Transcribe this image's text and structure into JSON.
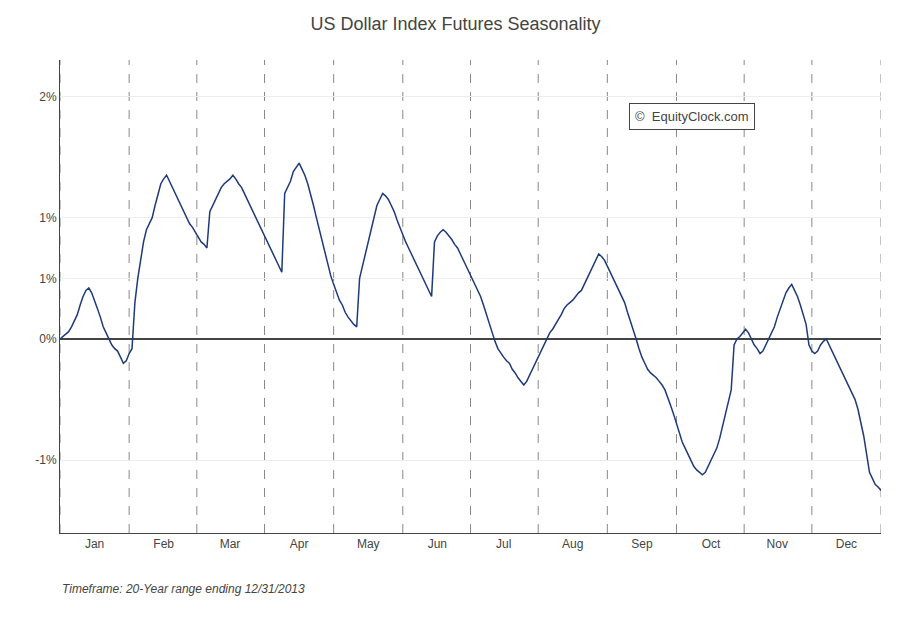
{
  "chart_data": {
    "type": "line",
    "title": "US Dollar Index Futures Seasonality",
    "subtitle": "Timeframe: 20-Year range ending 12/31/2013",
    "annotations": [
      "©  EquityClock.com"
    ],
    "color": "#1F3A7A",
    "ylim": [
      -1.6,
      2.3
    ],
    "yticks": [
      {
        "value": -1.0,
        "label": "-1%"
      },
      {
        "value": 0.0,
        "label": "0%"
      },
      {
        "value": 0.5,
        "label": "1%"
      },
      {
        "value": 1.0,
        "label": "1%"
      },
      {
        "value": 2.0,
        "label": "2%"
      }
    ],
    "grid": true,
    "categories": [
      null,
      null,
      null,
      null,
      null,
      null,
      null,
      null,
      null,
      null,
      null,
      null,
      "Jan",
      null,
      null,
      null,
      null,
      null,
      null,
      null,
      null,
      null,
      null,
      null,
      null,
      null,
      null,
      null,
      null,
      null,
      null,
      null,
      null,
      null,
      null,
      null,
      "Feb",
      null,
      null,
      null,
      null,
      null,
      null,
      null,
      null,
      null,
      null,
      null,
      null,
      null,
      null,
      null,
      null,
      null,
      null,
      null,
      null,
      null,
      null,
      "Mar",
      null,
      null,
      null,
      null,
      null,
      null,
      null,
      null,
      null,
      null,
      null,
      null,
      null,
      null,
      null,
      null,
      null,
      null,
      null,
      null,
      null,
      null,
      null,
      "Apr",
      null,
      null,
      null,
      null,
      null,
      null,
      null,
      null,
      null,
      null,
      null,
      null,
      null,
      null,
      null,
      null,
      null,
      null,
      null,
      null,
      null,
      null,
      null,
      "May",
      null,
      null,
      null,
      null,
      null,
      null,
      null,
      null,
      null,
      null,
      null,
      null,
      null,
      null,
      null,
      null,
      null,
      null,
      null,
      null,
      null,
      null,
      null,
      "Jun",
      null,
      null,
      null,
      null,
      null,
      null,
      null,
      null,
      null,
      null,
      null,
      null,
      null,
      null,
      null,
      null,
      null,
      null,
      null,
      null,
      null,
      null,
      "Jul",
      null,
      null,
      null,
      null,
      null,
      null,
      null,
      null,
      null,
      null,
      null,
      null,
      null,
      null,
      null,
      null,
      null,
      null,
      null,
      null,
      null,
      null,
      null,
      "Aug",
      null,
      null,
      null,
      null,
      null,
      null,
      null,
      null,
      null,
      null,
      null,
      null,
      null,
      null,
      null,
      null,
      null,
      null,
      null,
      null,
      null,
      null,
      null,
      "Sep",
      null,
      null,
      null,
      null,
      null,
      null,
      null,
      null,
      null,
      null,
      null,
      null,
      null,
      null,
      null,
      null,
      null,
      null,
      null,
      null,
      null,
      null,
      null,
      "Oct",
      null,
      null,
      null,
      null,
      null,
      null,
      null,
      null,
      null,
      null,
      null,
      null,
      null,
      null,
      null,
      null,
      null,
      null,
      null,
      null,
      null,
      null,
      "Nov",
      null,
      null,
      null,
      null,
      null,
      null,
      null,
      null,
      null,
      null,
      null,
      null,
      null,
      null,
      null,
      null,
      null,
      null,
      null,
      null,
      null,
      null,
      null,
      "Dec",
      null,
      null,
      null,
      null,
      null,
      null,
      null,
      null,
      null,
      null,
      null,
      null
    ],
    "values": [
      0.0,
      0.02,
      0.04,
      0.06,
      0.1,
      0.15,
      0.2,
      0.28,
      0.35,
      0.4,
      0.42,
      0.38,
      0.32,
      0.25,
      0.18,
      0.1,
      0.05,
      0.0,
      -0.05,
      -0.08,
      -0.1,
      -0.15,
      -0.2,
      -0.18,
      -0.12,
      -0.08,
      0.3,
      0.5,
      0.65,
      0.8,
      0.9,
      0.95,
      1.0,
      1.1,
      1.2,
      1.28,
      1.32,
      1.35,
      1.3,
      1.25,
      1.2,
      1.15,
      1.1,
      1.05,
      1.0,
      0.95,
      0.92,
      0.88,
      0.85,
      0.8,
      0.78,
      0.75,
      1.05,
      1.1,
      1.15,
      1.2,
      1.25,
      1.28,
      1.3,
      1.32,
      1.35,
      1.32,
      1.28,
      1.25,
      1.2,
      1.15,
      1.1,
      1.05,
      1.0,
      0.95,
      0.9,
      0.85,
      0.8,
      0.75,
      0.7,
      0.65,
      0.6,
      0.55,
      1.2,
      1.25,
      1.3,
      1.38,
      1.42,
      1.45,
      1.4,
      1.35,
      1.28,
      1.2,
      1.1,
      1.0,
      0.9,
      0.8,
      0.7,
      0.6,
      0.52,
      0.45,
      0.38,
      0.32,
      0.28,
      0.22,
      0.18,
      0.15,
      0.12,
      0.1,
      0.5,
      0.6,
      0.7,
      0.8,
      0.9,
      1.0,
      1.1,
      1.15,
      1.2,
      1.18,
      1.15,
      1.1,
      1.05,
      0.98,
      0.92,
      0.85,
      0.8,
      0.75,
      0.7,
      0.65,
      0.6,
      0.55,
      0.5,
      0.45,
      0.4,
      0.35,
      0.8,
      0.85,
      0.88,
      0.9,
      0.88,
      0.85,
      0.82,
      0.78,
      0.75,
      0.7,
      0.65,
      0.6,
      0.55,
      0.5,
      0.45,
      0.4,
      0.35,
      0.28,
      0.2,
      0.12,
      0.05,
      -0.02,
      -0.08,
      -0.12,
      -0.15,
      -0.18,
      -0.2,
      -0.25,
      -0.28,
      -0.32,
      -0.35,
      -0.38,
      -0.35,
      -0.3,
      -0.25,
      -0.2,
      -0.15,
      -0.1,
      -0.05,
      0.0,
      0.05,
      0.08,
      0.12,
      0.15,
      0.2,
      0.25,
      0.28,
      0.3,
      0.32,
      0.35,
      0.38,
      0.4,
      0.45,
      0.5,
      0.55,
      0.6,
      0.65,
      0.7,
      0.68,
      0.65,
      0.6,
      0.55,
      0.5,
      0.45,
      0.4,
      0.35,
      0.3,
      0.22,
      0.15,
      0.08,
      0.0,
      -0.08,
      -0.15,
      -0.2,
      -0.25,
      -0.28,
      -0.3,
      -0.32,
      -0.35,
      -0.38,
      -0.42,
      -0.48,
      -0.55,
      -0.62,
      -0.7,
      -0.78,
      -0.85,
      -0.9,
      -0.95,
      -1.0,
      -1.05,
      -1.08,
      -1.1,
      -1.12,
      -1.1,
      -1.05,
      -1.0,
      -0.95,
      -0.9,
      -0.82,
      -0.72,
      -0.62,
      -0.52,
      -0.42,
      -0.05,
      0.0,
      0.02,
      0.05,
      0.08,
      0.05,
      0.0,
      -0.05,
      -0.08,
      -0.12,
      -0.1,
      -0.05,
      0.0,
      0.05,
      0.1,
      0.18,
      0.25,
      0.32,
      0.38,
      0.42,
      0.45,
      0.4,
      0.35,
      0.28,
      0.2,
      0.12,
      -0.05,
      -0.1,
      -0.12,
      -0.1,
      -0.05,
      -0.02,
      0.0,
      -0.05,
      -0.1,
      -0.15,
      -0.2,
      -0.25,
      -0.3,
      -0.35,
      -0.4,
      -0.45,
      -0.5,
      -0.58,
      -0.68,
      -0.8,
      -0.95,
      -1.1,
      -1.15,
      -1.2,
      -1.22,
      -1.25
    ]
  }
}
